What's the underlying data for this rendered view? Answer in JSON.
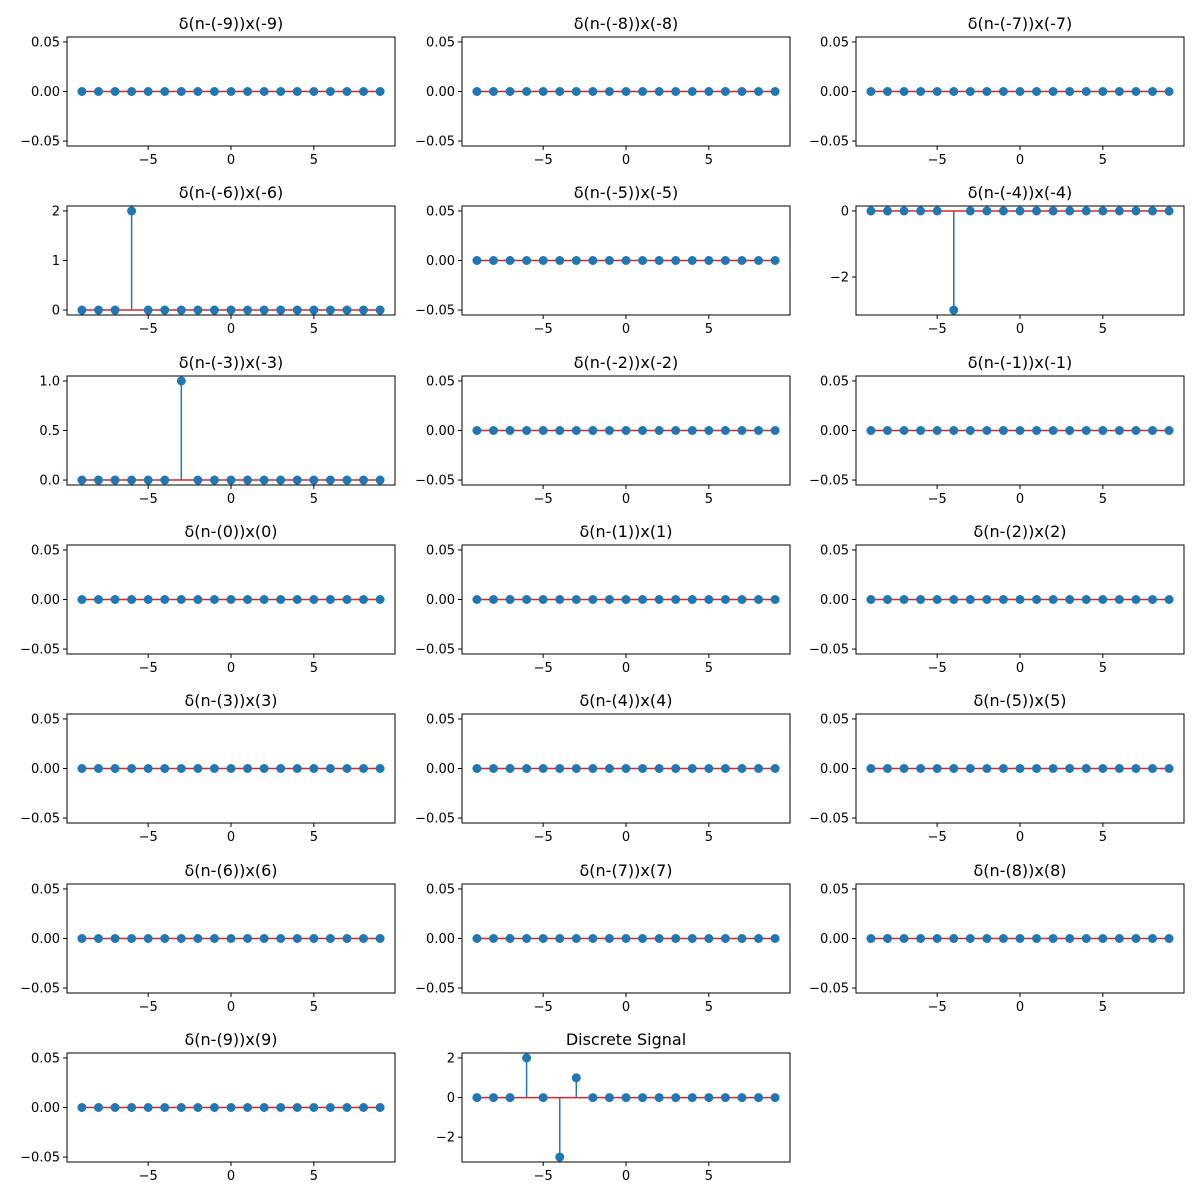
{
  "colors": {
    "stem": "#1f77b4",
    "baseline": "#d62728",
    "axes": "#000000",
    "background": "#ffffff"
  },
  "chart_data": [
    {
      "type": "stem",
      "title": "δ(n-(-9))x(-9)",
      "x": [
        -9,
        -8,
        -7,
        -6,
        -5,
        -4,
        -3,
        -2,
        -1,
        0,
        1,
        2,
        3,
        4,
        5,
        6,
        7,
        8,
        9
      ],
      "values": [
        0,
        0,
        0,
        0,
        0,
        0,
        0,
        0,
        0,
        0,
        0,
        0,
        0,
        0,
        0,
        0,
        0,
        0,
        0
      ],
      "xlim": [
        -9.9,
        9.9
      ],
      "ylim": [
        -0.055,
        0.055
      ],
      "xticks": [
        -5,
        0,
        5
      ],
      "xtick_labels": [
        "−5",
        "0",
        "5"
      ],
      "yticks": [
        -0.05,
        0,
        0.05
      ],
      "ytick_labels": [
        "−0.05",
        "0.00",
        "0.05"
      ]
    },
    {
      "type": "stem",
      "title": "δ(n-(-8))x(-8)",
      "x": [
        -9,
        -8,
        -7,
        -6,
        -5,
        -4,
        -3,
        -2,
        -1,
        0,
        1,
        2,
        3,
        4,
        5,
        6,
        7,
        8,
        9
      ],
      "values": [
        0,
        0,
        0,
        0,
        0,
        0,
        0,
        0,
        0,
        0,
        0,
        0,
        0,
        0,
        0,
        0,
        0,
        0,
        0
      ],
      "xlim": [
        -9.9,
        9.9
      ],
      "ylim": [
        -0.055,
        0.055
      ],
      "xticks": [
        -5,
        0,
        5
      ],
      "xtick_labels": [
        "−5",
        "0",
        "5"
      ],
      "yticks": [
        -0.05,
        0,
        0.05
      ],
      "ytick_labels": [
        "−0.05",
        "0.00",
        "0.05"
      ]
    },
    {
      "type": "stem",
      "title": "δ(n-(-7))x(-7)",
      "x": [
        -9,
        -8,
        -7,
        -6,
        -5,
        -4,
        -3,
        -2,
        -1,
        0,
        1,
        2,
        3,
        4,
        5,
        6,
        7,
        8,
        9
      ],
      "values": [
        0,
        0,
        0,
        0,
        0,
        0,
        0,
        0,
        0,
        0,
        0,
        0,
        0,
        0,
        0,
        0,
        0,
        0,
        0
      ],
      "xlim": [
        -9.9,
        9.9
      ],
      "ylim": [
        -0.055,
        0.055
      ],
      "xticks": [
        -5,
        0,
        5
      ],
      "xtick_labels": [
        "−5",
        "0",
        "5"
      ],
      "yticks": [
        -0.05,
        0,
        0.05
      ],
      "ytick_labels": [
        "−0.05",
        "0.00",
        "0.05"
      ]
    },
    {
      "type": "stem",
      "title": "δ(n-(-6))x(-6)",
      "x": [
        -9,
        -8,
        -7,
        -6,
        -5,
        -4,
        -3,
        -2,
        -1,
        0,
        1,
        2,
        3,
        4,
        5,
        6,
        7,
        8,
        9
      ],
      "values": [
        0,
        0,
        0,
        2,
        0,
        0,
        0,
        0,
        0,
        0,
        0,
        0,
        0,
        0,
        0,
        0,
        0,
        0,
        0
      ],
      "xlim": [
        -9.9,
        9.9
      ],
      "ylim": [
        -0.1,
        2.1
      ],
      "xticks": [
        -5,
        0,
        5
      ],
      "xtick_labels": [
        "−5",
        "0",
        "5"
      ],
      "yticks": [
        0,
        1,
        2
      ],
      "ytick_labels": [
        "0",
        "1",
        "2"
      ]
    },
    {
      "type": "stem",
      "title": "δ(n-(-5))x(-5)",
      "x": [
        -9,
        -8,
        -7,
        -6,
        -5,
        -4,
        -3,
        -2,
        -1,
        0,
        1,
        2,
        3,
        4,
        5,
        6,
        7,
        8,
        9
      ],
      "values": [
        0,
        0,
        0,
        0,
        0,
        0,
        0,
        0,
        0,
        0,
        0,
        0,
        0,
        0,
        0,
        0,
        0,
        0,
        0
      ],
      "xlim": [
        -9.9,
        9.9
      ],
      "ylim": [
        -0.055,
        0.055
      ],
      "xticks": [
        -5,
        0,
        5
      ],
      "xtick_labels": [
        "−5",
        "0",
        "5"
      ],
      "yticks": [
        -0.05,
        0,
        0.05
      ],
      "ytick_labels": [
        "−0.05",
        "0.00",
        "0.05"
      ]
    },
    {
      "type": "stem",
      "title": "δ(n-(-4))x(-4)",
      "x": [
        -9,
        -8,
        -7,
        -6,
        -5,
        -4,
        -3,
        -2,
        -1,
        0,
        1,
        2,
        3,
        4,
        5,
        6,
        7,
        8,
        9
      ],
      "values": [
        0,
        0,
        0,
        0,
        0,
        -3,
        0,
        0,
        0,
        0,
        0,
        0,
        0,
        0,
        0,
        0,
        0,
        0,
        0
      ],
      "xlim": [
        -9.9,
        9.9
      ],
      "ylim": [
        -3.15,
        0.15
      ],
      "xticks": [
        -5,
        0,
        5
      ],
      "xtick_labels": [
        "−5",
        "0",
        "5"
      ],
      "yticks": [
        -2,
        0
      ],
      "ytick_labels": [
        "−2",
        "0"
      ]
    },
    {
      "type": "stem",
      "title": "δ(n-(-3))x(-3)",
      "x": [
        -9,
        -8,
        -7,
        -6,
        -5,
        -4,
        -3,
        -2,
        -1,
        0,
        1,
        2,
        3,
        4,
        5,
        6,
        7,
        8,
        9
      ],
      "values": [
        0,
        0,
        0,
        0,
        0,
        0,
        1,
        0,
        0,
        0,
        0,
        0,
        0,
        0,
        0,
        0,
        0,
        0,
        0
      ],
      "xlim": [
        -9.9,
        9.9
      ],
      "ylim": [
        -0.05,
        1.05
      ],
      "xticks": [
        -5,
        0,
        5
      ],
      "xtick_labels": [
        "−5",
        "0",
        "5"
      ],
      "yticks": [
        0,
        0.5,
        1
      ],
      "ytick_labels": [
        "0.0",
        "0.5",
        "1.0"
      ]
    },
    {
      "type": "stem",
      "title": "δ(n-(-2))x(-2)",
      "x": [
        -9,
        -8,
        -7,
        -6,
        -5,
        -4,
        -3,
        -2,
        -1,
        0,
        1,
        2,
        3,
        4,
        5,
        6,
        7,
        8,
        9
      ],
      "values": [
        0,
        0,
        0,
        0,
        0,
        0,
        0,
        0,
        0,
        0,
        0,
        0,
        0,
        0,
        0,
        0,
        0,
        0,
        0
      ],
      "xlim": [
        -9.9,
        9.9
      ],
      "ylim": [
        -0.055,
        0.055
      ],
      "xticks": [
        -5,
        0,
        5
      ],
      "xtick_labels": [
        "−5",
        "0",
        "5"
      ],
      "yticks": [
        -0.05,
        0,
        0.05
      ],
      "ytick_labels": [
        "−0.05",
        "0.00",
        "0.05"
      ]
    },
    {
      "type": "stem",
      "title": "δ(n-(-1))x(-1)",
      "x": [
        -9,
        -8,
        -7,
        -6,
        -5,
        -4,
        -3,
        -2,
        -1,
        0,
        1,
        2,
        3,
        4,
        5,
        6,
        7,
        8,
        9
      ],
      "values": [
        0,
        0,
        0,
        0,
        0,
        0,
        0,
        0,
        0,
        0,
        0,
        0,
        0,
        0,
        0,
        0,
        0,
        0,
        0
      ],
      "xlim": [
        -9.9,
        9.9
      ],
      "ylim": [
        -0.055,
        0.055
      ],
      "xticks": [
        -5,
        0,
        5
      ],
      "xtick_labels": [
        "−5",
        "0",
        "5"
      ],
      "yticks": [
        -0.05,
        0,
        0.05
      ],
      "ytick_labels": [
        "−0.05",
        "0.00",
        "0.05"
      ]
    },
    {
      "type": "stem",
      "title": "δ(n-(0))x(0)",
      "x": [
        -9,
        -8,
        -7,
        -6,
        -5,
        -4,
        -3,
        -2,
        -1,
        0,
        1,
        2,
        3,
        4,
        5,
        6,
        7,
        8,
        9
      ],
      "values": [
        0,
        0,
        0,
        0,
        0,
        0,
        0,
        0,
        0,
        0,
        0,
        0,
        0,
        0,
        0,
        0,
        0,
        0,
        0
      ],
      "xlim": [
        -9.9,
        9.9
      ],
      "ylim": [
        -0.055,
        0.055
      ],
      "xticks": [
        -5,
        0,
        5
      ],
      "xtick_labels": [
        "−5",
        "0",
        "5"
      ],
      "yticks": [
        -0.05,
        0,
        0.05
      ],
      "ytick_labels": [
        "−0.05",
        "0.00",
        "0.05"
      ]
    },
    {
      "type": "stem",
      "title": "δ(n-(1))x(1)",
      "x": [
        -9,
        -8,
        -7,
        -6,
        -5,
        -4,
        -3,
        -2,
        -1,
        0,
        1,
        2,
        3,
        4,
        5,
        6,
        7,
        8,
        9
      ],
      "values": [
        0,
        0,
        0,
        0,
        0,
        0,
        0,
        0,
        0,
        0,
        0,
        0,
        0,
        0,
        0,
        0,
        0,
        0,
        0
      ],
      "xlim": [
        -9.9,
        9.9
      ],
      "ylim": [
        -0.055,
        0.055
      ],
      "xticks": [
        -5,
        0,
        5
      ],
      "xtick_labels": [
        "−5",
        "0",
        "5"
      ],
      "yticks": [
        -0.05,
        0,
        0.05
      ],
      "ytick_labels": [
        "−0.05",
        "0.00",
        "0.05"
      ]
    },
    {
      "type": "stem",
      "title": "δ(n-(2))x(2)",
      "x": [
        -9,
        -8,
        -7,
        -6,
        -5,
        -4,
        -3,
        -2,
        -1,
        0,
        1,
        2,
        3,
        4,
        5,
        6,
        7,
        8,
        9
      ],
      "values": [
        0,
        0,
        0,
        0,
        0,
        0,
        0,
        0,
        0,
        0,
        0,
        0,
        0,
        0,
        0,
        0,
        0,
        0,
        0
      ],
      "xlim": [
        -9.9,
        9.9
      ],
      "ylim": [
        -0.055,
        0.055
      ],
      "xticks": [
        -5,
        0,
        5
      ],
      "xtick_labels": [
        "−5",
        "0",
        "5"
      ],
      "yticks": [
        -0.05,
        0,
        0.05
      ],
      "ytick_labels": [
        "−0.05",
        "0.00",
        "0.05"
      ]
    },
    {
      "type": "stem",
      "title": "δ(n-(3))x(3)",
      "x": [
        -9,
        -8,
        -7,
        -6,
        -5,
        -4,
        -3,
        -2,
        -1,
        0,
        1,
        2,
        3,
        4,
        5,
        6,
        7,
        8,
        9
      ],
      "values": [
        0,
        0,
        0,
        0,
        0,
        0,
        0,
        0,
        0,
        0,
        0,
        0,
        0,
        0,
        0,
        0,
        0,
        0,
        0
      ],
      "xlim": [
        -9.9,
        9.9
      ],
      "ylim": [
        -0.055,
        0.055
      ],
      "xticks": [
        -5,
        0,
        5
      ],
      "xtick_labels": [
        "−5",
        "0",
        "5"
      ],
      "yticks": [
        -0.05,
        0,
        0.05
      ],
      "ytick_labels": [
        "−0.05",
        "0.00",
        "0.05"
      ]
    },
    {
      "type": "stem",
      "title": "δ(n-(4))x(4)",
      "x": [
        -9,
        -8,
        -7,
        -6,
        -5,
        -4,
        -3,
        -2,
        -1,
        0,
        1,
        2,
        3,
        4,
        5,
        6,
        7,
        8,
        9
      ],
      "values": [
        0,
        0,
        0,
        0,
        0,
        0,
        0,
        0,
        0,
        0,
        0,
        0,
        0,
        0,
        0,
        0,
        0,
        0,
        0
      ],
      "xlim": [
        -9.9,
        9.9
      ],
      "ylim": [
        -0.055,
        0.055
      ],
      "xticks": [
        -5,
        0,
        5
      ],
      "xtick_labels": [
        "−5",
        "0",
        "5"
      ],
      "yticks": [
        -0.05,
        0,
        0.05
      ],
      "ytick_labels": [
        "−0.05",
        "0.00",
        "0.05"
      ]
    },
    {
      "type": "stem",
      "title": "δ(n-(5))x(5)",
      "x": [
        -9,
        -8,
        -7,
        -6,
        -5,
        -4,
        -3,
        -2,
        -1,
        0,
        1,
        2,
        3,
        4,
        5,
        6,
        7,
        8,
        9
      ],
      "values": [
        0,
        0,
        0,
        0,
        0,
        0,
        0,
        0,
        0,
        0,
        0,
        0,
        0,
        0,
        0,
        0,
        0,
        0,
        0
      ],
      "xlim": [
        -9.9,
        9.9
      ],
      "ylim": [
        -0.055,
        0.055
      ],
      "xticks": [
        -5,
        0,
        5
      ],
      "xtick_labels": [
        "−5",
        "0",
        "5"
      ],
      "yticks": [
        -0.05,
        0,
        0.05
      ],
      "ytick_labels": [
        "−0.05",
        "0.00",
        "0.05"
      ]
    },
    {
      "type": "stem",
      "title": "δ(n-(6))x(6)",
      "x": [
        -9,
        -8,
        -7,
        -6,
        -5,
        -4,
        -3,
        -2,
        -1,
        0,
        1,
        2,
        3,
        4,
        5,
        6,
        7,
        8,
        9
      ],
      "values": [
        0,
        0,
        0,
        0,
        0,
        0,
        0,
        0,
        0,
        0,
        0,
        0,
        0,
        0,
        0,
        0,
        0,
        0,
        0
      ],
      "xlim": [
        -9.9,
        9.9
      ],
      "ylim": [
        -0.055,
        0.055
      ],
      "xticks": [
        -5,
        0,
        5
      ],
      "xtick_labels": [
        "−5",
        "0",
        "5"
      ],
      "yticks": [
        -0.05,
        0,
        0.05
      ],
      "ytick_labels": [
        "−0.05",
        "0.00",
        "0.05"
      ]
    },
    {
      "type": "stem",
      "title": "δ(n-(7))x(7)",
      "x": [
        -9,
        -8,
        -7,
        -6,
        -5,
        -4,
        -3,
        -2,
        -1,
        0,
        1,
        2,
        3,
        4,
        5,
        6,
        7,
        8,
        9
      ],
      "values": [
        0,
        0,
        0,
        0,
        0,
        0,
        0,
        0,
        0,
        0,
        0,
        0,
        0,
        0,
        0,
        0,
        0,
        0,
        0
      ],
      "xlim": [
        -9.9,
        9.9
      ],
      "ylim": [
        -0.055,
        0.055
      ],
      "xticks": [
        -5,
        0,
        5
      ],
      "xtick_labels": [
        "−5",
        "0",
        "5"
      ],
      "yticks": [
        -0.05,
        0,
        0.05
      ],
      "ytick_labels": [
        "−0.05",
        "0.00",
        "0.05"
      ]
    },
    {
      "type": "stem",
      "title": "δ(n-(8))x(8)",
      "x": [
        -9,
        -8,
        -7,
        -6,
        -5,
        -4,
        -3,
        -2,
        -1,
        0,
        1,
        2,
        3,
        4,
        5,
        6,
        7,
        8,
        9
      ],
      "values": [
        0,
        0,
        0,
        0,
        0,
        0,
        0,
        0,
        0,
        0,
        0,
        0,
        0,
        0,
        0,
        0,
        0,
        0,
        0
      ],
      "xlim": [
        -9.9,
        9.9
      ],
      "ylim": [
        -0.055,
        0.055
      ],
      "xticks": [
        -5,
        0,
        5
      ],
      "xtick_labels": [
        "−5",
        "0",
        "5"
      ],
      "yticks": [
        -0.05,
        0,
        0.05
      ],
      "ytick_labels": [
        "−0.05",
        "0.00",
        "0.05"
      ]
    },
    {
      "type": "stem",
      "title": "δ(n-(9))x(9)",
      "x": [
        -9,
        -8,
        -7,
        -6,
        -5,
        -4,
        -3,
        -2,
        -1,
        0,
        1,
        2,
        3,
        4,
        5,
        6,
        7,
        8,
        9
      ],
      "values": [
        0,
        0,
        0,
        0,
        0,
        0,
        0,
        0,
        0,
        0,
        0,
        0,
        0,
        0,
        0,
        0,
        0,
        0,
        0
      ],
      "xlim": [
        -9.9,
        9.9
      ],
      "ylim": [
        -0.055,
        0.055
      ],
      "xticks": [
        -5,
        0,
        5
      ],
      "xtick_labels": [
        "−5",
        "0",
        "5"
      ],
      "yticks": [
        -0.05,
        0,
        0.05
      ],
      "ytick_labels": [
        "−0.05",
        "0.00",
        "0.05"
      ]
    },
    {
      "type": "stem",
      "title": "Discrete Signal",
      "x": [
        -9,
        -8,
        -7,
        -6,
        -5,
        -4,
        -3,
        -2,
        -1,
        0,
        1,
        2,
        3,
        4,
        5,
        6,
        7,
        8,
        9
      ],
      "values": [
        0,
        0,
        0,
        2,
        0,
        -3,
        1,
        0,
        0,
        0,
        0,
        0,
        0,
        0,
        0,
        0,
        0,
        0,
        0
      ],
      "xlim": [
        -9.9,
        9.9
      ],
      "ylim": [
        -3.25,
        2.25
      ],
      "xticks": [
        -5,
        0,
        5
      ],
      "xtick_labels": [
        "−5",
        "0",
        "5"
      ],
      "yticks": [
        -2,
        0,
        2
      ],
      "ytick_labels": [
        "−2",
        "0",
        "2"
      ]
    }
  ]
}
